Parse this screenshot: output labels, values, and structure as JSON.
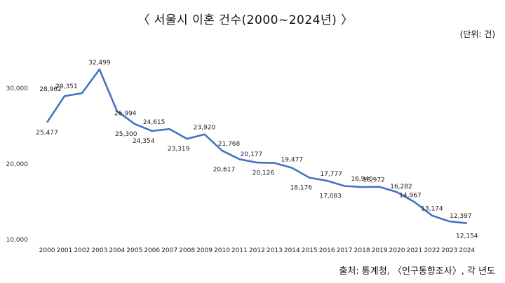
{
  "title": "〈 서울시 이혼 건수(2000~2024년) 〉",
  "unit": "(단위: 건)",
  "source": "출처: 통계청, 〈인구동향조사〉, 각 년도",
  "colors": {
    "line": "#4472C4"
  },
  "chart_data": {
    "type": "line",
    "categories": [
      "2000",
      "2001",
      "2002",
      "2003",
      "2004",
      "2005",
      "2006",
      "2007",
      "2008",
      "2009",
      "2010",
      "2011",
      "2012",
      "2013",
      "2014",
      "2015",
      "2016",
      "2017",
      "2018",
      "2019",
      "2020",
      "2021",
      "2022",
      "2023",
      "2024"
    ],
    "values": [
      25477,
      28962,
      29351,
      32499,
      26994,
      25300,
      24354,
      24615,
      23319,
      23920,
      21768,
      20617,
      20177,
      20126,
      19477,
      18176,
      17777,
      17083,
      16940,
      16972,
      16282,
      14967,
      13174,
      12397,
      12154
    ],
    "data_labels": [
      "25,477",
      "28,962",
      "29,351",
      "32,499",
      "26,994",
      "25,300",
      "24,354",
      "24,615",
      "23,319",
      "23,920",
      "21,768",
      "20,617",
      "20,177",
      "20,126",
      "19,477",
      "18,176",
      "17,777",
      "17,083",
      "16,940",
      "16,972",
      "16,282",
      "14,967",
      "13,174",
      "12,397",
      "12,154"
    ],
    "y_ticks": [
      10000,
      20000,
      30000
    ],
    "y_tick_labels": [
      "10,000",
      "20,000",
      "30,000"
    ],
    "ylim": [
      10000,
      34000
    ],
    "grid": false,
    "legend": "none"
  }
}
